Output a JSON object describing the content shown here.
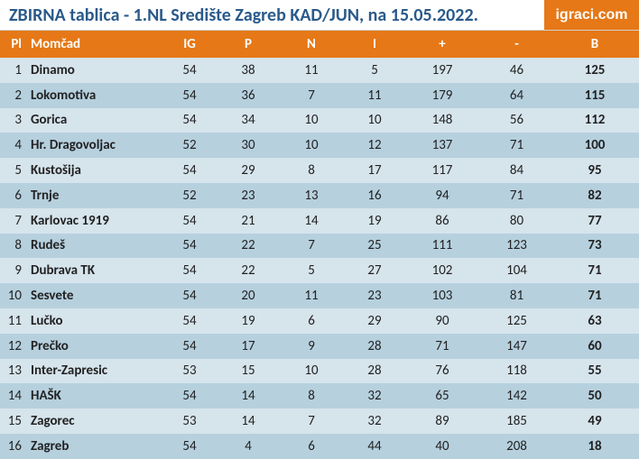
{
  "title": "ZBIRNA tablica - 1.NL Središte Zagreb KAD/JUN, na 15.05.2022.",
  "logo_text": "igraci.com",
  "colors": {
    "header_bg": "#e67817",
    "title_color": "#2a5a8a",
    "row_even": "#d6e4ec",
    "row_odd": "#b6d0de"
  },
  "headers": {
    "pl": "Pl",
    "team": "Momčad",
    "ig": "IG",
    "p": "P",
    "n": "N",
    "i": "I",
    "plus": "+",
    "minus": "-",
    "b": "B"
  },
  "rows": [
    {
      "pl": 1,
      "team": "Dinamo",
      "ig": 54,
      "p": 38,
      "n": 11,
      "i": 5,
      "plus": 197,
      "minus": 46,
      "b": 125
    },
    {
      "pl": 2,
      "team": "Lokomotiva",
      "ig": 54,
      "p": 36,
      "n": 7,
      "i": 11,
      "plus": 179,
      "minus": 64,
      "b": 115
    },
    {
      "pl": 3,
      "team": "Gorica",
      "ig": 54,
      "p": 34,
      "n": 10,
      "i": 10,
      "plus": 148,
      "minus": 56,
      "b": 112
    },
    {
      "pl": 4,
      "team": "Hr. Dragovoljac",
      "ig": 52,
      "p": 30,
      "n": 10,
      "i": 12,
      "plus": 137,
      "minus": 71,
      "b": 100
    },
    {
      "pl": 5,
      "team": "Kustošija",
      "ig": 54,
      "p": 29,
      "n": 8,
      "i": 17,
      "plus": 117,
      "minus": 84,
      "b": 95
    },
    {
      "pl": 6,
      "team": "Trnje",
      "ig": 52,
      "p": 23,
      "n": 13,
      "i": 16,
      "plus": 94,
      "minus": 71,
      "b": 82
    },
    {
      "pl": 7,
      "team": "Karlovac 1919",
      "ig": 54,
      "p": 21,
      "n": 14,
      "i": 19,
      "plus": 86,
      "minus": 80,
      "b": 77
    },
    {
      "pl": 8,
      "team": "Rudeš",
      "ig": 54,
      "p": 22,
      "n": 7,
      "i": 25,
      "plus": 111,
      "minus": 123,
      "b": 73
    },
    {
      "pl": 9,
      "team": "Dubrava TK",
      "ig": 54,
      "p": 22,
      "n": 5,
      "i": 27,
      "plus": 102,
      "minus": 104,
      "b": 71
    },
    {
      "pl": 10,
      "team": "Sesvete",
      "ig": 54,
      "p": 20,
      "n": 11,
      "i": 23,
      "plus": 103,
      "minus": 81,
      "b": 71
    },
    {
      "pl": 11,
      "team": "Lučko",
      "ig": 54,
      "p": 19,
      "n": 6,
      "i": 29,
      "plus": 90,
      "minus": 125,
      "b": 63
    },
    {
      "pl": 12,
      "team": "Prečko",
      "ig": 54,
      "p": 17,
      "n": 9,
      "i": 28,
      "plus": 71,
      "minus": 147,
      "b": 60
    },
    {
      "pl": 13,
      "team": "Inter-Zapresic",
      "ig": 53,
      "p": 15,
      "n": 10,
      "i": 28,
      "plus": 76,
      "minus": 118,
      "b": 55
    },
    {
      "pl": 14,
      "team": "HAŠK",
      "ig": 54,
      "p": 14,
      "n": 8,
      "i": 32,
      "plus": 65,
      "minus": 142,
      "b": 50
    },
    {
      "pl": 15,
      "team": "Zagorec",
      "ig": 53,
      "p": 14,
      "n": 7,
      "i": 32,
      "plus": 89,
      "minus": 185,
      "b": 49
    },
    {
      "pl": 16,
      "team": "Zagreb",
      "ig": 54,
      "p": 4,
      "n": 6,
      "i": 44,
      "plus": 40,
      "minus": 208,
      "b": 18
    }
  ]
}
